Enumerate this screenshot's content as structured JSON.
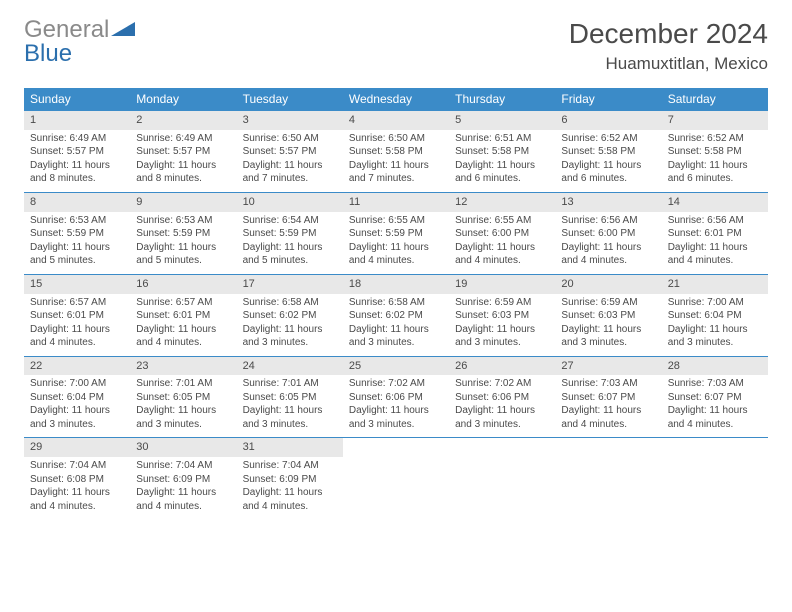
{
  "logo": {
    "text_gray": "General",
    "text_blue": "Blue"
  },
  "title": "December 2024",
  "location": "Huamuxtitlan, Mexico",
  "colors": {
    "header_bg": "#3b8bc8",
    "header_text": "#ffffff",
    "daynum_bg": "#e8e8e8",
    "border": "#3b8bc8",
    "body_text": "#4a4a4a",
    "logo_gray": "#8a8a8a",
    "logo_blue": "#2b6fad",
    "background": "#ffffff"
  },
  "typography": {
    "title_fontsize": 28,
    "location_fontsize": 17,
    "weekday_fontsize": 12,
    "daynum_fontsize": 11,
    "cell_fontsize": 10
  },
  "weekdays": [
    "Sunday",
    "Monday",
    "Tuesday",
    "Wednesday",
    "Thursday",
    "Friday",
    "Saturday"
  ],
  "weeks": [
    [
      {
        "day": "1",
        "sunrise": "Sunrise: 6:49 AM",
        "sunset": "Sunset: 5:57 PM",
        "daylight": "Daylight: 11 hours and 8 minutes."
      },
      {
        "day": "2",
        "sunrise": "Sunrise: 6:49 AM",
        "sunset": "Sunset: 5:57 PM",
        "daylight": "Daylight: 11 hours and 8 minutes."
      },
      {
        "day": "3",
        "sunrise": "Sunrise: 6:50 AM",
        "sunset": "Sunset: 5:57 PM",
        "daylight": "Daylight: 11 hours and 7 minutes."
      },
      {
        "day": "4",
        "sunrise": "Sunrise: 6:50 AM",
        "sunset": "Sunset: 5:58 PM",
        "daylight": "Daylight: 11 hours and 7 minutes."
      },
      {
        "day": "5",
        "sunrise": "Sunrise: 6:51 AM",
        "sunset": "Sunset: 5:58 PM",
        "daylight": "Daylight: 11 hours and 6 minutes."
      },
      {
        "day": "6",
        "sunrise": "Sunrise: 6:52 AM",
        "sunset": "Sunset: 5:58 PM",
        "daylight": "Daylight: 11 hours and 6 minutes."
      },
      {
        "day": "7",
        "sunrise": "Sunrise: 6:52 AM",
        "sunset": "Sunset: 5:58 PM",
        "daylight": "Daylight: 11 hours and 6 minutes."
      }
    ],
    [
      {
        "day": "8",
        "sunrise": "Sunrise: 6:53 AM",
        "sunset": "Sunset: 5:59 PM",
        "daylight": "Daylight: 11 hours and 5 minutes."
      },
      {
        "day": "9",
        "sunrise": "Sunrise: 6:53 AM",
        "sunset": "Sunset: 5:59 PM",
        "daylight": "Daylight: 11 hours and 5 minutes."
      },
      {
        "day": "10",
        "sunrise": "Sunrise: 6:54 AM",
        "sunset": "Sunset: 5:59 PM",
        "daylight": "Daylight: 11 hours and 5 minutes."
      },
      {
        "day": "11",
        "sunrise": "Sunrise: 6:55 AM",
        "sunset": "Sunset: 5:59 PM",
        "daylight": "Daylight: 11 hours and 4 minutes."
      },
      {
        "day": "12",
        "sunrise": "Sunrise: 6:55 AM",
        "sunset": "Sunset: 6:00 PM",
        "daylight": "Daylight: 11 hours and 4 minutes."
      },
      {
        "day": "13",
        "sunrise": "Sunrise: 6:56 AM",
        "sunset": "Sunset: 6:00 PM",
        "daylight": "Daylight: 11 hours and 4 minutes."
      },
      {
        "day": "14",
        "sunrise": "Sunrise: 6:56 AM",
        "sunset": "Sunset: 6:01 PM",
        "daylight": "Daylight: 11 hours and 4 minutes."
      }
    ],
    [
      {
        "day": "15",
        "sunrise": "Sunrise: 6:57 AM",
        "sunset": "Sunset: 6:01 PM",
        "daylight": "Daylight: 11 hours and 4 minutes."
      },
      {
        "day": "16",
        "sunrise": "Sunrise: 6:57 AM",
        "sunset": "Sunset: 6:01 PM",
        "daylight": "Daylight: 11 hours and 4 minutes."
      },
      {
        "day": "17",
        "sunrise": "Sunrise: 6:58 AM",
        "sunset": "Sunset: 6:02 PM",
        "daylight": "Daylight: 11 hours and 3 minutes."
      },
      {
        "day": "18",
        "sunrise": "Sunrise: 6:58 AM",
        "sunset": "Sunset: 6:02 PM",
        "daylight": "Daylight: 11 hours and 3 minutes."
      },
      {
        "day": "19",
        "sunrise": "Sunrise: 6:59 AM",
        "sunset": "Sunset: 6:03 PM",
        "daylight": "Daylight: 11 hours and 3 minutes."
      },
      {
        "day": "20",
        "sunrise": "Sunrise: 6:59 AM",
        "sunset": "Sunset: 6:03 PM",
        "daylight": "Daylight: 11 hours and 3 minutes."
      },
      {
        "day": "21",
        "sunrise": "Sunrise: 7:00 AM",
        "sunset": "Sunset: 6:04 PM",
        "daylight": "Daylight: 11 hours and 3 minutes."
      }
    ],
    [
      {
        "day": "22",
        "sunrise": "Sunrise: 7:00 AM",
        "sunset": "Sunset: 6:04 PM",
        "daylight": "Daylight: 11 hours and 3 minutes."
      },
      {
        "day": "23",
        "sunrise": "Sunrise: 7:01 AM",
        "sunset": "Sunset: 6:05 PM",
        "daylight": "Daylight: 11 hours and 3 minutes."
      },
      {
        "day": "24",
        "sunrise": "Sunrise: 7:01 AM",
        "sunset": "Sunset: 6:05 PM",
        "daylight": "Daylight: 11 hours and 3 minutes."
      },
      {
        "day": "25",
        "sunrise": "Sunrise: 7:02 AM",
        "sunset": "Sunset: 6:06 PM",
        "daylight": "Daylight: 11 hours and 3 minutes."
      },
      {
        "day": "26",
        "sunrise": "Sunrise: 7:02 AM",
        "sunset": "Sunset: 6:06 PM",
        "daylight": "Daylight: 11 hours and 3 minutes."
      },
      {
        "day": "27",
        "sunrise": "Sunrise: 7:03 AM",
        "sunset": "Sunset: 6:07 PM",
        "daylight": "Daylight: 11 hours and 4 minutes."
      },
      {
        "day": "28",
        "sunrise": "Sunrise: 7:03 AM",
        "sunset": "Sunset: 6:07 PM",
        "daylight": "Daylight: 11 hours and 4 minutes."
      }
    ],
    [
      {
        "day": "29",
        "sunrise": "Sunrise: 7:04 AM",
        "sunset": "Sunset: 6:08 PM",
        "daylight": "Daylight: 11 hours and 4 minutes."
      },
      {
        "day": "30",
        "sunrise": "Sunrise: 7:04 AM",
        "sunset": "Sunset: 6:09 PM",
        "daylight": "Daylight: 11 hours and 4 minutes."
      },
      {
        "day": "31",
        "sunrise": "Sunrise: 7:04 AM",
        "sunset": "Sunset: 6:09 PM",
        "daylight": "Daylight: 11 hours and 4 minutes."
      },
      null,
      null,
      null,
      null
    ]
  ]
}
